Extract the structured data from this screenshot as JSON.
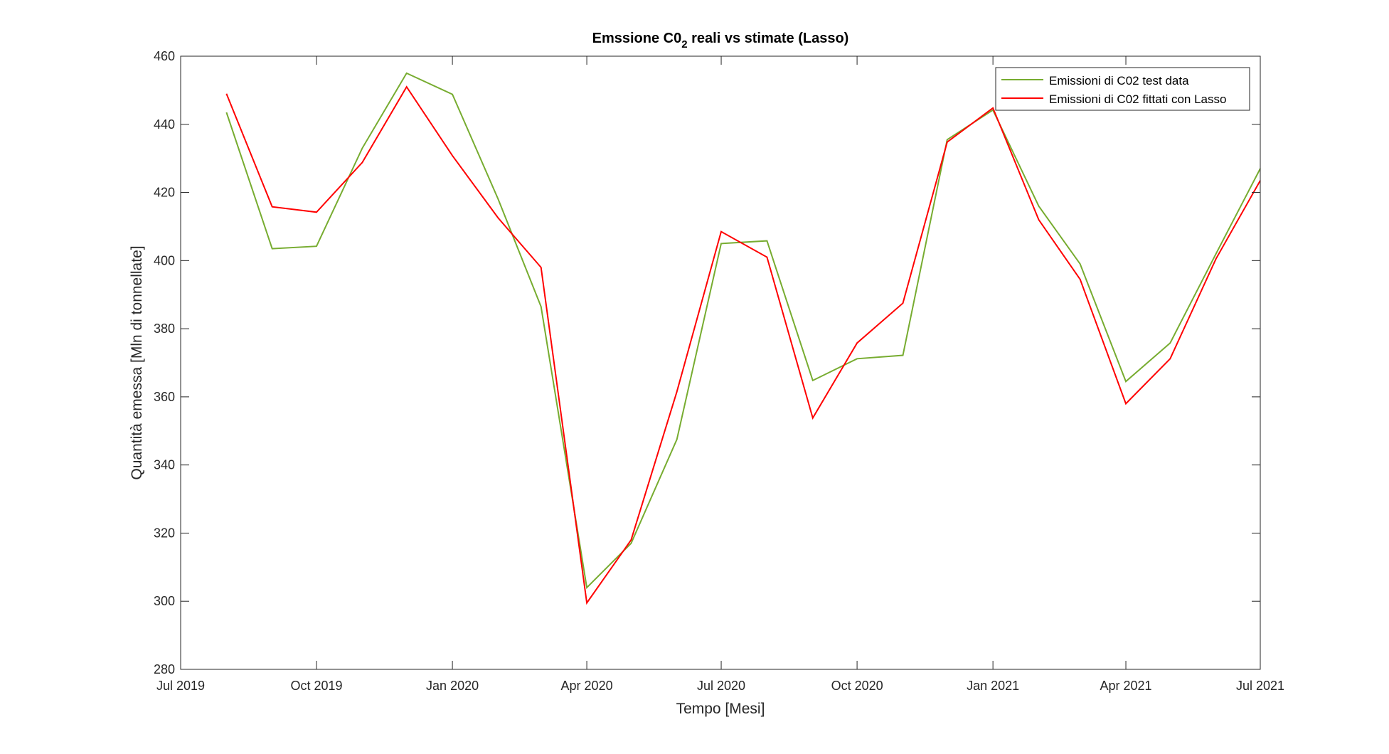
{
  "chart_data": {
    "type": "line",
    "title": {
      "main": "Emssione C0",
      "subscript": "2",
      "rest": " reali vs stimate (Lasso)"
    },
    "xlabel": "Tempo [Mesi]",
    "ylabel": "Quantità emessa [Mln di tonnellate]",
    "xlim": [
      "2019-07-01",
      "2021-07-01"
    ],
    "ylim": [
      280,
      460
    ],
    "x_ticks": [
      {
        "date": "2019-07-01",
        "label": "Jul 2019"
      },
      {
        "date": "2019-10-01",
        "label": "Oct 2019"
      },
      {
        "date": "2020-01-01",
        "label": "Jan 2020"
      },
      {
        "date": "2020-04-01",
        "label": "Apr 2020"
      },
      {
        "date": "2020-07-01",
        "label": "Jul 2020"
      },
      {
        "date": "2020-10-01",
        "label": "Oct 2020"
      },
      {
        "date": "2021-01-01",
        "label": "Jan 2021"
      },
      {
        "date": "2021-04-01",
        "label": "Apr 2021"
      },
      {
        "date": "2021-07-01",
        "label": "Jul 2021"
      }
    ],
    "y_ticks": [
      280,
      300,
      320,
      340,
      360,
      380,
      400,
      420,
      440,
      460
    ],
    "x": [
      "2019-08-01",
      "2019-09-01",
      "2019-10-01",
      "2019-11-01",
      "2019-12-01",
      "2020-01-01",
      "2020-02-01",
      "2020-03-01",
      "2020-04-01",
      "2020-05-01",
      "2020-06-01",
      "2020-07-01",
      "2020-08-01",
      "2020-09-01",
      "2020-10-01",
      "2020-11-01",
      "2020-12-01",
      "2021-01-01",
      "2021-02-01",
      "2021-03-01",
      "2021-04-01",
      "2021-05-01",
      "2021-06-01",
      "2021-07-01"
    ],
    "series": [
      {
        "name": "Emissioni di C02 test data",
        "color": "#77ac30",
        "values": [
          443.5,
          403.5,
          404.2,
          433.0,
          455.0,
          448.8,
          418.0,
          386.5,
          304.0,
          317.0,
          347.5,
          405.0,
          405.8,
          364.8,
          371.2,
          372.2,
          435.5,
          444.2,
          416.0,
          399.0,
          364.5,
          375.8,
          402.0,
          427.0
        ]
      },
      {
        "name": "Emissioni di C02 fittati con Lasso",
        "color": "#ff0000",
        "values": [
          449.0,
          415.8,
          414.2,
          428.8,
          451.0,
          430.8,
          412.5,
          398.0,
          299.5,
          318.0,
          361.5,
          408.5,
          401.0,
          353.8,
          375.8,
          387.5,
          434.8,
          444.8,
          412.0,
          394.5,
          358.0,
          371.2,
          400.5,
          423.5
        ]
      }
    ],
    "legend_position": "top-right",
    "grid": false
  }
}
